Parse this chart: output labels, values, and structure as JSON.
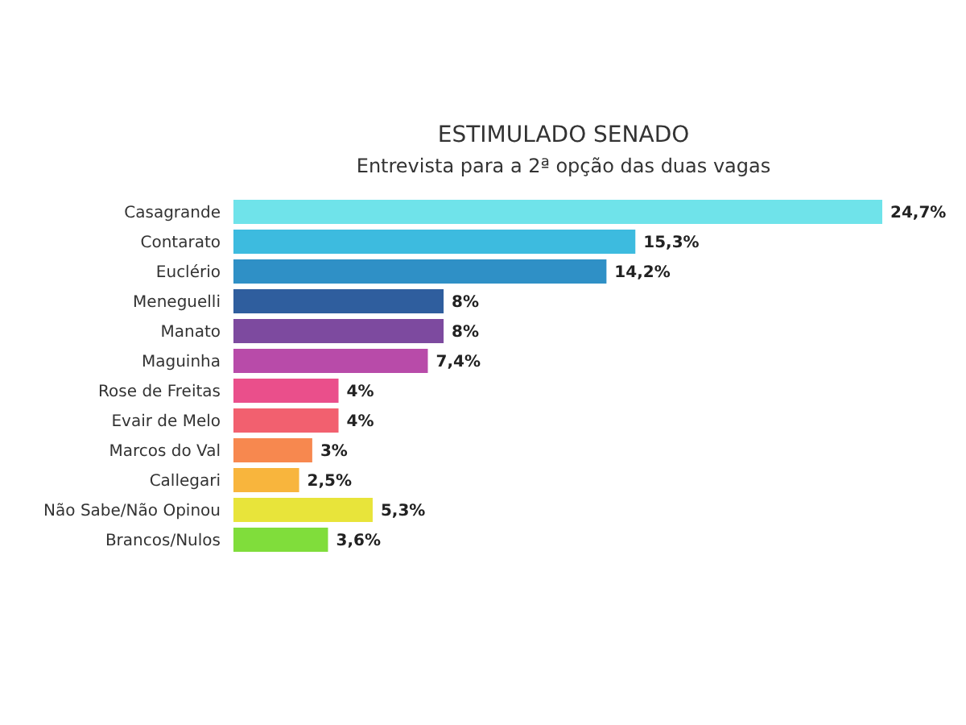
{
  "chart_data": {
    "type": "bar",
    "orientation": "horizontal",
    "title": "ESTIMULADO SENADO",
    "subtitle": "Entrevista para a 2ª opção das duas vagas",
    "categories": [
      "Casagrande",
      "Contarato",
      "Euclério",
      "Meneguelli",
      "Manato",
      "Maguinha",
      "Rose de Freitas",
      "Evair de Melo",
      "Marcos do Val",
      "Callegari",
      "Não Sabe/Não Opinou",
      "Brancos/Nulos"
    ],
    "values": [
      24.7,
      15.3,
      14.2,
      8,
      8,
      7.4,
      4,
      4,
      3,
      2.5,
      5.3,
      3.6
    ],
    "value_labels": [
      "24,7%",
      "15,3%",
      "14,2%",
      "8%",
      "8%",
      "7,4%",
      "4%",
      "4%",
      "3%",
      "2,5%",
      "5,3%",
      "3,6%"
    ],
    "colors": [
      "#6fe3ea",
      "#3dbbdf",
      "#2f90c6",
      "#2f5e9e",
      "#7d4a9f",
      "#b84ba9",
      "#ea4f8b",
      "#f2606f",
      "#f7884f",
      "#f8b53d",
      "#e8e43a",
      "#80dd3b"
    ]
  }
}
